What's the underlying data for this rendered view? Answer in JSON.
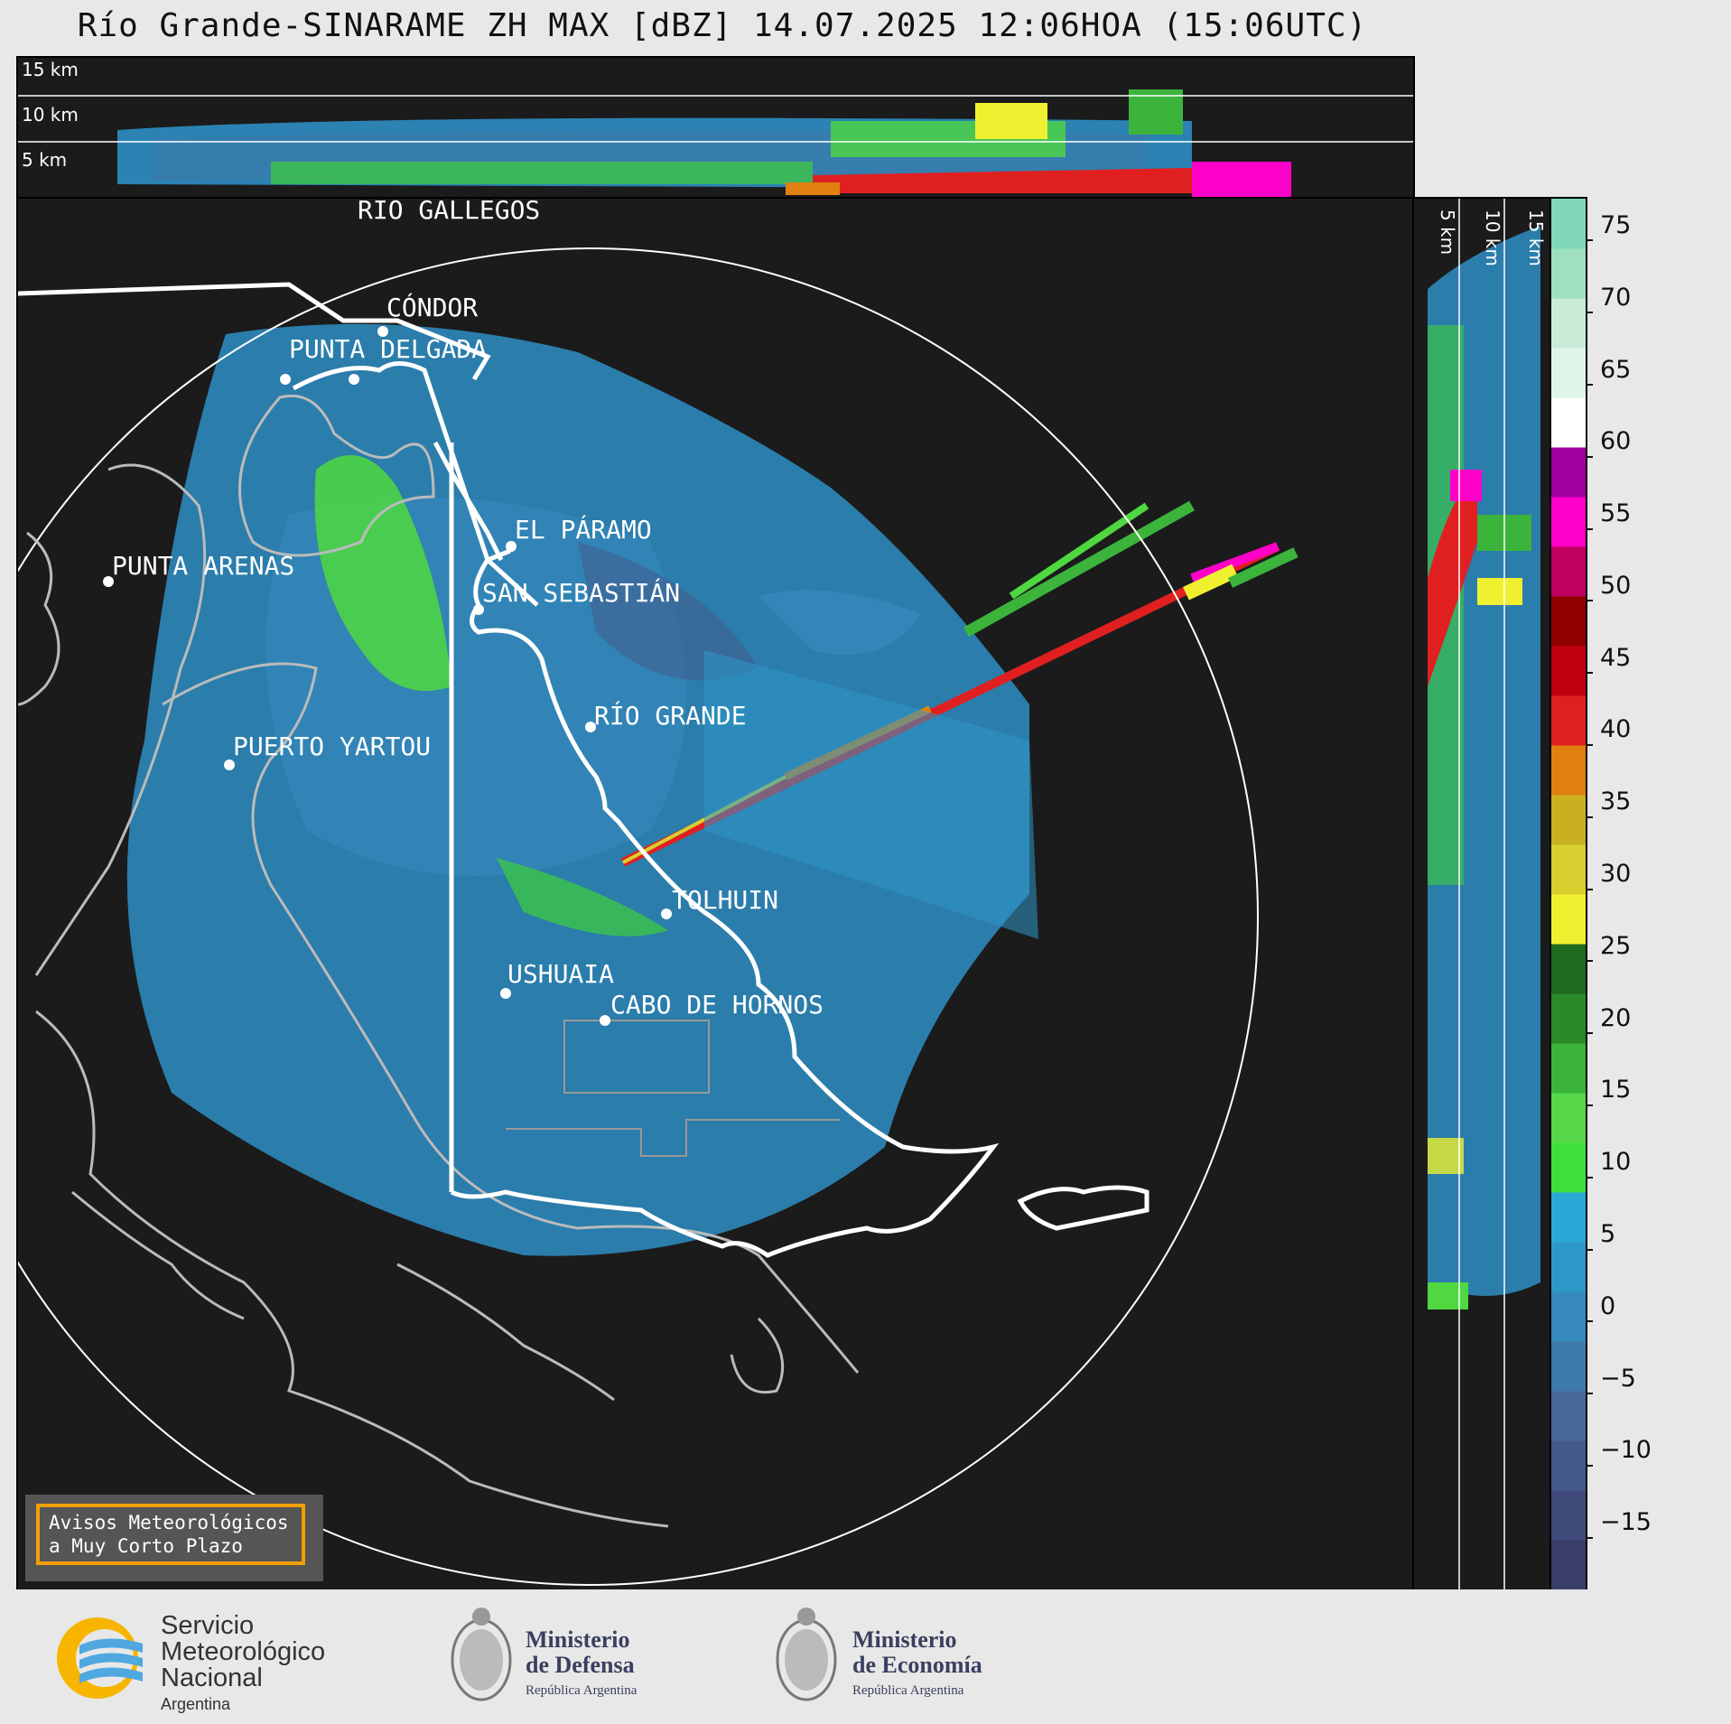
{
  "title": "Río Grande-SINARAME ZH MAX [dBZ] 14.07.2025 12:06HOA (15:06UTC)",
  "top_panel": {
    "height_labels": [
      "15 km",
      "10 km",
      "5 km"
    ]
  },
  "side_panel": {
    "height_labels": [
      "5 km",
      "10 km",
      "15 km"
    ]
  },
  "map": {
    "places": [
      {
        "name": "RÍO GALLEGOS"
      },
      {
        "name": "CÓNDOR"
      },
      {
        "name": "PUNTA DELGADA"
      },
      {
        "name": "EL PÁRAMO"
      },
      {
        "name": "PUNTA ARENAS"
      },
      {
        "name": "SAN SEBASTIÁN"
      },
      {
        "name": "RÍO GRANDE"
      },
      {
        "name": "PUERTO YARTOU"
      },
      {
        "name": "TOLHUIN"
      },
      {
        "name": "USHUAIA"
      },
      {
        "name": "CABO DE HORNOS"
      }
    ]
  },
  "colorbar": {
    "unit": "dBZ",
    "ticks": [
      "75",
      "70",
      "65",
      "60",
      "55",
      "50",
      "45",
      "40",
      "35",
      "30",
      "25",
      "20",
      "15",
      "10",
      "5",
      "0",
      "−5",
      "−10",
      "−15"
    ],
    "colors": [
      "#3a3f6a",
      "#404a7a",
      "#45588a",
      "#47689a",
      "#3d7aaa",
      "#3589bc",
      "#2e98c8",
      "#2aa8d8",
      "#3fe03a",
      "#56d84a",
      "#3cb43c",
      "#2a8a2a",
      "#1e6a1e",
      "#f0f030",
      "#d8d030",
      "#c8b020",
      "#e08010",
      "#e02020",
      "#c00010",
      "#900000",
      "#c00060",
      "#ff00c8",
      "#a000a0",
      "#ffffff",
      "#e0f4ea",
      "#c8ecd8",
      "#9ee0c0",
      "#80d8b8"
    ]
  },
  "avisos": {
    "line1": "Avisos Meteorológicos",
    "line2": "a Muy Corto Plazo"
  },
  "footer": {
    "smn": {
      "line1": "Servicio",
      "line2": "Meteorológico",
      "line3": "Nacional",
      "line4": "Argentina"
    },
    "defensa": {
      "line1": "Ministerio",
      "line2": "de Defensa",
      "line3": "República Argentina"
    },
    "economia": {
      "line1": "Ministerio",
      "line2": "de Economía",
      "line3": "República Argentina"
    }
  }
}
